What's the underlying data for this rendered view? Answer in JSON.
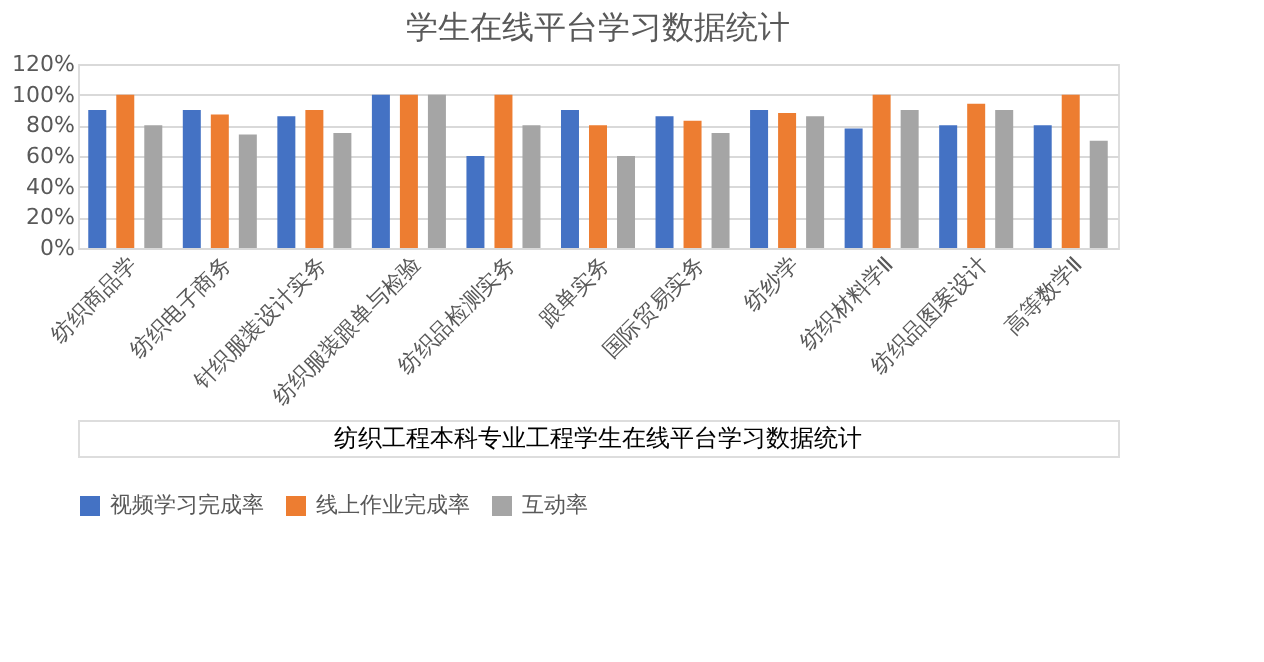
{
  "chart_data": {
    "type": "bar",
    "title": "学生在线平台学习数据统计",
    "categories": [
      "纺织商品学",
      "纺织电子商务",
      "针织服装设计实务",
      "纺织服装跟单与检验",
      "纺织品检测实务",
      "跟单实务",
      "国际贸易实务",
      "纺纱学",
      "纺织材料学Ⅱ",
      "纺织品图案设计",
      "高等数学Ⅱ"
    ],
    "series": [
      {
        "name": "视频学习完成率",
        "color": "#4472c4",
        "values": [
          90,
          90,
          86,
          100,
          60,
          90,
          86,
          90,
          78,
          80,
          80
        ]
      },
      {
        "name": "线上作业完成率",
        "color": "#ed7d31",
        "values": [
          100,
          87,
          90,
          100,
          100,
          80,
          83,
          88,
          100,
          94,
          100
        ]
      },
      {
        "name": "互动率",
        "color": "#a5a5a5",
        "values": [
          80,
          74,
          75,
          100,
          80,
          60,
          75,
          86,
          90,
          90,
          70
        ]
      }
    ],
    "ylim": [
      0,
      120
    ],
    "yticks": [
      {
        "value": 0,
        "label": "0%"
      },
      {
        "value": 20,
        "label": "20%"
      },
      {
        "value": 40,
        "label": "40%"
      },
      {
        "value": 60,
        "label": "60%"
      },
      {
        "value": 80,
        "label": "80%"
      },
      {
        "value": 100,
        "label": "100%"
      },
      {
        "value": 120,
        "label": "120%"
      }
    ],
    "grid": "y",
    "legend": "bottom",
    "annotations": [
      "纺织工程本科专业工程学生在线平台学习数据统计"
    ]
  }
}
